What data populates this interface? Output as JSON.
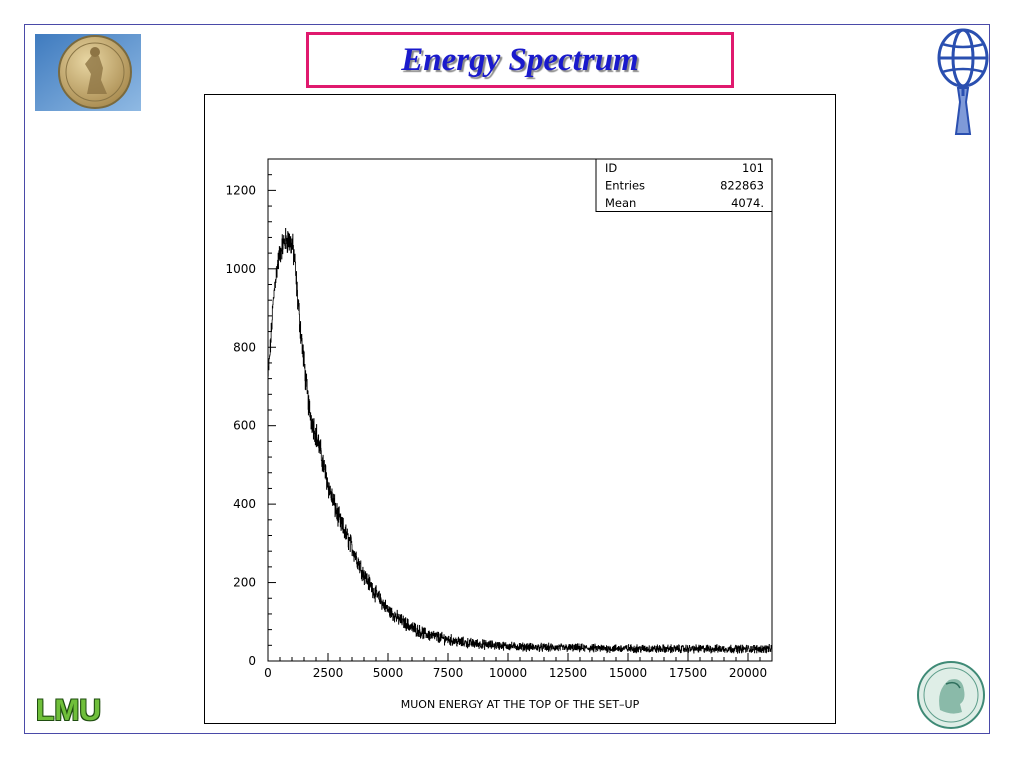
{
  "slide": {
    "title": "Energy Spectrum",
    "bottom_left_logo_text": "LMU"
  },
  "colors": {
    "title_text": "#1a1acc",
    "title_border": "#e0196e",
    "frame_border": "#4a4aa8",
    "lmu_green": "#6fbf3a"
  },
  "icons": {
    "top_left": "medallion-logo-icon",
    "top_right": "atlas-logo-icon",
    "bottom_left": "lmu-logo-icon",
    "bottom_right": "max-planck-logo-icon"
  },
  "chart_data": {
    "type": "histogram",
    "xlabel": "MUON ENERGY AT THE TOP OF THE SET–UP",
    "ylabel": "",
    "xlim": [
      0,
      21000
    ],
    "ylim": [
      0,
      1280
    ],
    "x_ticks": [
      "0",
      "2500",
      "5000",
      "7500",
      "10000",
      "12500",
      "15000",
      "17500",
      "20000"
    ],
    "y_ticks": [
      "0",
      "200",
      "400",
      "600",
      "800",
      "1000",
      "1200"
    ],
    "stats": [
      {
        "label": "ID",
        "value": "101"
      },
      {
        "label": "Entries",
        "value": "822863"
      },
      {
        "label": "Mean",
        "value": "4074."
      }
    ],
    "curve": {
      "x": [
        0,
        100,
        200,
        300,
        400,
        500,
        600,
        700,
        800,
        900,
        1000,
        1100,
        1200,
        1300,
        1400,
        1500,
        1600,
        1700,
        1800,
        2000,
        2200,
        2500,
        2800,
        3000,
        3500,
        4000,
        4500,
        5000,
        5500,
        6000,
        6500,
        7000,
        7500,
        8000,
        9000,
        10000,
        11000,
        12000,
        13000,
        14000,
        15000,
        16000,
        17000,
        18000,
        19000,
        20000,
        21000
      ],
      "y": [
        720,
        800,
        900,
        970,
        1010,
        1040,
        1060,
        1070,
        1075,
        1070,
        1060,
        1030,
        950,
        880,
        820,
        760,
        700,
        650,
        620,
        580,
        530,
        450,
        390,
        355,
        290,
        220,
        170,
        130,
        105,
        85,
        70,
        62,
        55,
        48,
        42,
        38,
        35,
        34,
        33,
        32,
        32,
        31,
        31,
        31,
        31,
        31,
        31
      ]
    },
    "noise": {
      "x": [
        0,
        1000,
        2500,
        5000,
        10000,
        21000
      ],
      "amplitude": [
        20,
        30,
        24,
        14,
        8,
        8
      ]
    },
    "bins": 2100
  }
}
